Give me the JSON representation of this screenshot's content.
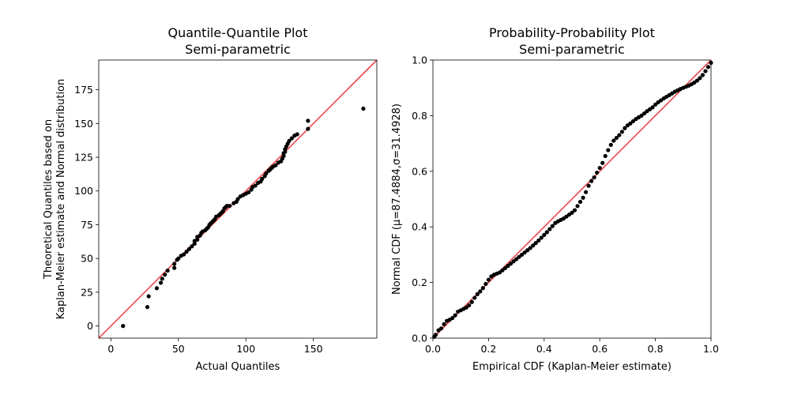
{
  "chart_data": [
    {
      "type": "scatter",
      "title_line1": "Quantile-Quantile Plot",
      "title_line2": "Semi-parametric",
      "xlabel": "Actual Quantiles",
      "ylabel_line1": "Theoretical Quantiles based on",
      "ylabel_line2": "Kaplan-Meier estimate and Normal distribution",
      "xlim": [
        -9,
        197
      ],
      "ylim": [
        -9,
        197
      ],
      "xticks": [
        0,
        50,
        100,
        150
      ],
      "yticks": [
        0,
        25,
        50,
        75,
        100,
        125,
        150,
        175
      ],
      "reference_line": "y = x",
      "colors": {
        "points": "#000000",
        "line": "#ee4444"
      },
      "x": [
        9,
        27,
        28,
        34,
        37,
        38,
        40,
        42,
        47,
        47,
        49,
        50,
        52,
        54,
        56,
        58,
        60,
        62,
        62,
        64,
        64,
        66,
        67,
        68,
        70,
        71,
        72,
        73,
        74,
        75,
        76,
        77,
        78,
        80,
        81,
        82,
        83,
        84,
        85,
        86,
        88,
        91,
        93,
        94,
        96,
        98,
        100,
        102,
        104,
        105,
        107,
        109,
        111,
        112,
        114,
        115,
        117,
        118,
        119,
        120,
        122,
        124,
        126,
        127,
        128,
        128,
        129,
        129,
        130,
        131,
        132,
        134,
        136,
        138,
        146,
        146,
        187
      ],
      "y": [
        0,
        14,
        22,
        28,
        32,
        35,
        38,
        41,
        43,
        46,
        49,
        50,
        52,
        53,
        55,
        57,
        59,
        61,
        63,
        64,
        66,
        67,
        69,
        70,
        71,
        72,
        73,
        75,
        76,
        77,
        78,
        79,
        81,
        82,
        83,
        84,
        85,
        87,
        88,
        89,
        89,
        91,
        92,
        94,
        96,
        97,
        98,
        99,
        101,
        103,
        104,
        106,
        107,
        109,
        111,
        113,
        115,
        116,
        117,
        118,
        119,
        121,
        122,
        124,
        126,
        128,
        129,
        131,
        133,
        135,
        137,
        139,
        141,
        142,
        146,
        152,
        161
      ]
    },
    {
      "type": "scatter",
      "title_line1": "Probability-Probability Plot",
      "title_line2": "Semi-parametric",
      "xlabel": "Empirical CDF (Kaplan-Meier estimate)",
      "ylabel": "Normal CDF (μ=87.4884,σ=31.4928)",
      "xlim": [
        0,
        1
      ],
      "ylim": [
        0,
        1
      ],
      "xticks": [
        "0.0",
        "0.2",
        "0.4",
        "0.6",
        "0.8",
        "1.0"
      ],
      "yticks": [
        "0.0",
        "0.2",
        "0.4",
        "0.6",
        "0.8",
        "1.0"
      ],
      "reference_line": "y = x",
      "colors": {
        "points": "#000000",
        "line": "#ee4444"
      },
      "x": [
        0.005,
        0.01,
        0.02,
        0.03,
        0.04,
        0.05,
        0.06,
        0.07,
        0.08,
        0.09,
        0.1,
        0.11,
        0.12,
        0.13,
        0.14,
        0.15,
        0.16,
        0.17,
        0.18,
        0.19,
        0.2,
        0.21,
        0.22,
        0.23,
        0.24,
        0.25,
        0.26,
        0.27,
        0.28,
        0.29,
        0.3,
        0.31,
        0.32,
        0.33,
        0.34,
        0.35,
        0.36,
        0.37,
        0.38,
        0.39,
        0.4,
        0.41,
        0.42,
        0.43,
        0.44,
        0.45,
        0.46,
        0.47,
        0.48,
        0.49,
        0.5,
        0.51,
        0.52,
        0.53,
        0.54,
        0.55,
        0.56,
        0.57,
        0.58,
        0.59,
        0.6,
        0.61,
        0.62,
        0.63,
        0.64,
        0.65,
        0.66,
        0.67,
        0.68,
        0.69,
        0.7,
        0.71,
        0.72,
        0.73,
        0.74,
        0.75,
        0.76,
        0.77,
        0.78,
        0.79,
        0.8,
        0.81,
        0.82,
        0.83,
        0.84,
        0.85,
        0.86,
        0.87,
        0.88,
        0.89,
        0.9,
        0.91,
        0.92,
        0.93,
        0.94,
        0.95,
        0.96,
        0.97,
        0.98,
        0.99,
        1.0
      ],
      "y": [
        0.005,
        0.012,
        0.028,
        0.035,
        0.05,
        0.062,
        0.066,
        0.072,
        0.082,
        0.095,
        0.1,
        0.105,
        0.11,
        0.118,
        0.13,
        0.145,
        0.158,
        0.168,
        0.18,
        0.195,
        0.21,
        0.222,
        0.228,
        0.232,
        0.236,
        0.244,
        0.252,
        0.26,
        0.268,
        0.276,
        0.284,
        0.292,
        0.3,
        0.308,
        0.316,
        0.324,
        0.333,
        0.342,
        0.351,
        0.361,
        0.371,
        0.381,
        0.392,
        0.403,
        0.414,
        0.42,
        0.425,
        0.43,
        0.437,
        0.444,
        0.451,
        0.46,
        0.475,
        0.49,
        0.505,
        0.525,
        0.548,
        0.565,
        0.578,
        0.595,
        0.612,
        0.63,
        0.655,
        0.676,
        0.695,
        0.71,
        0.72,
        0.73,
        0.742,
        0.755,
        0.765,
        0.772,
        0.78,
        0.788,
        0.794,
        0.8,
        0.808,
        0.816,
        0.823,
        0.83,
        0.84,
        0.848,
        0.855,
        0.862,
        0.868,
        0.874,
        0.88,
        0.886,
        0.891,
        0.896,
        0.9,
        0.904,
        0.908,
        0.913,
        0.919,
        0.926,
        0.935,
        0.946,
        0.96,
        0.975,
        0.99
      ]
    }
  ]
}
